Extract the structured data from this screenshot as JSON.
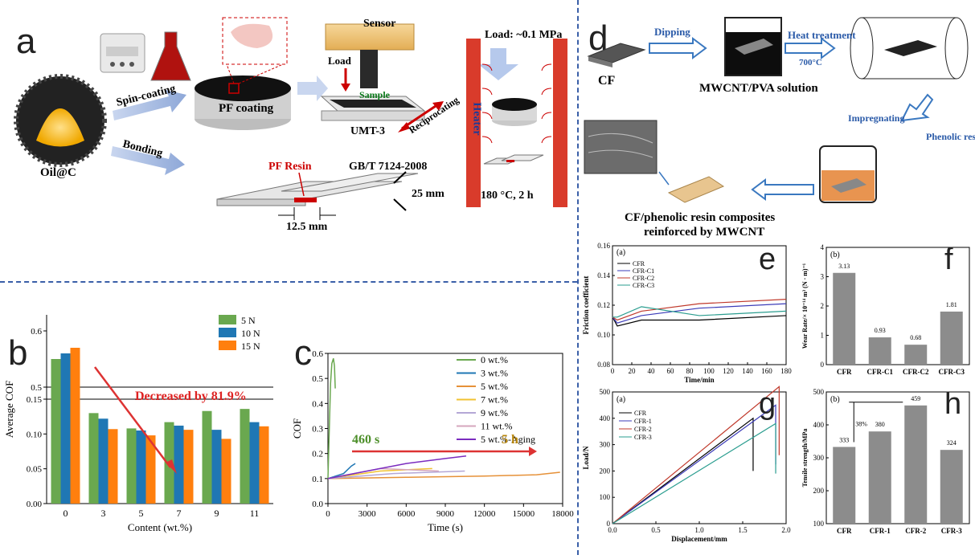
{
  "panel_labels": {
    "a": "a",
    "b": "b",
    "c": "c",
    "d": "d",
    "e": "e",
    "f": "f",
    "g": "g",
    "h": "h"
  },
  "panel_a": {
    "oil_c": "Oil@C",
    "spin_coating": "Spin-coating",
    "bonding": "Bonding",
    "pf_coating": "PF coating",
    "sensor": "Sensor",
    "load": "Load",
    "sample": "Sample",
    "umt": "UMT-3",
    "reciprocating": "Reciprocating",
    "pf_resin": "PF Resin",
    "standard": "GB/T 7124-2008",
    "width": "25 mm",
    "overlap": "12.5 mm",
    "load_top": "Load: ~0.1 MPa",
    "heater": "Heater",
    "condition": "180 °C, 2 h"
  },
  "panel_d": {
    "cf": "CF",
    "dipping": "Dipping",
    "solution": "MWCNT/PVA solution",
    "heat_treatment": "Heat treatment",
    "temp": "700°C",
    "impregnating": "Impregnating",
    "phenolic_resin": "Phenolic resin",
    "caption_line1": "CF/phenolic resin composites",
    "caption_line2": "reinforced by MWCNT"
  },
  "chart_data": [
    {
      "id": "b",
      "type": "bar",
      "ylabel": "Average COF",
      "xlabel": "Content (wt.%)",
      "categories": [
        "0",
        "3",
        "5",
        "7",
        "9",
        "11"
      ],
      "series": [
        {
          "name": "5 N",
          "color": "#6aa84f",
          "values": [
            0.55,
            0.13,
            0.108,
            0.117,
            0.133,
            0.136
          ]
        },
        {
          "name": "10 N",
          "color": "#1f77b4",
          "values": [
            0.56,
            0.122,
            0.105,
            0.112,
            0.106,
            0.117
          ]
        },
        {
          "name": "15 N",
          "color": "#ff7f0e",
          "values": [
            0.57,
            0.107,
            0.098,
            0.106,
            0.093,
            0.111
          ]
        }
      ],
      "yticks": [
        "0.00",
        "0.05",
        "0.10",
        "0.15",
        "0.5",
        "0.6"
      ],
      "annotation": "Decreased by 81.9%"
    },
    {
      "id": "c",
      "type": "line",
      "ylabel": "COF",
      "xlabel": "Time (s)",
      "xticks": [
        "0",
        "3000",
        "6000",
        "9000",
        "12000",
        "15000",
        "18000"
      ],
      "yticks": [
        "0.0",
        "0.1",
        "0.2",
        "0.3",
        "0.4",
        "0.5",
        "0.6"
      ],
      "xlim": [
        0,
        18000
      ],
      "ylim": [
        0,
        0.6
      ],
      "series": [
        {
          "name": "0 wt.%",
          "color": "#6aa84f"
        },
        {
          "name": "3 wt.%",
          "color": "#1f77b4"
        },
        {
          "name": "5 wt.%",
          "color": "#e69138"
        },
        {
          "name": "7 wt.%",
          "color": "#f1c232"
        },
        {
          "name": "9 wt.%",
          "color": "#b4a7d6"
        },
        {
          "name": "11 wt.%",
          "color": "#d5a6bd"
        },
        {
          "name": "5 wt.%-Aging",
          "color": "#7b2cbf"
        }
      ],
      "annotation_left": "460 s",
      "annotation_right": "5 h"
    },
    {
      "id": "e",
      "type": "line",
      "subfig": "(a)",
      "ylabel": "Friction coefficient",
      "xlabel": "Time/min",
      "xticks": [
        "0",
        "20",
        "40",
        "60",
        "80",
        "100",
        "120",
        "140",
        "160",
        "180"
      ],
      "yticks": [
        "0.08",
        "0.10",
        "0.12",
        "0.14",
        "0.16"
      ],
      "xlim": [
        0,
        180
      ],
      "ylim": [
        0.08,
        0.16
      ],
      "series": [
        {
          "name": "CFR",
          "color": "#000000"
        },
        {
          "name": "CFR-C1",
          "color": "#3b3bb8"
        },
        {
          "name": "CFR-C2",
          "color": "#c0392b"
        },
        {
          "name": "CFR-C3",
          "color": "#2a9d8f"
        }
      ]
    },
    {
      "id": "f",
      "type": "bar",
      "subfig": "(b)",
      "ylabel": "Wear Rate/× 10⁻¹⁴ m³ (N · m)⁻¹",
      "categories": [
        "CFR",
        "CFR-C1",
        "CFR-C2",
        "CFR-C3"
      ],
      "values": [
        3.13,
        0.93,
        0.68,
        1.81
      ],
      "value_labels": [
        "3.13",
        "0.93",
        "0.68",
        "1.81"
      ],
      "yticks": [
        "0",
        "1",
        "2",
        "3",
        "4"
      ],
      "ylim": [
        0,
        4
      ]
    },
    {
      "id": "g",
      "type": "line",
      "subfig": "(a)",
      "ylabel": "Load/N",
      "xlabel": "Displacement/mm",
      "xticks": [
        "0.0",
        "0.5",
        "1.0",
        "1.5",
        "2.0"
      ],
      "yticks": [
        "0",
        "100",
        "200",
        "300",
        "400",
        "500"
      ],
      "xlim": [
        0,
        2.0
      ],
      "ylim": [
        0,
        500
      ],
      "series": [
        {
          "name": "CFR",
          "color": "#000000"
        },
        {
          "name": "CFR-1",
          "color": "#3b3bb8"
        },
        {
          "name": "CFR-2",
          "color": "#c0392b"
        },
        {
          "name": "CFR-3",
          "color": "#2a9d8f"
        }
      ]
    },
    {
      "id": "h",
      "type": "bar",
      "subfig": "(b)",
      "ylabel": "Tensile strength/MPa",
      "categories": [
        "CFR",
        "CFR-1",
        "CFR-2",
        "CFR-3"
      ],
      "values": [
        333,
        380,
        459,
        324
      ],
      "value_labels": [
        "333",
        "380",
        "459",
        "324"
      ],
      "yticks": [
        "100",
        "200",
        "300",
        "400",
        "500"
      ],
      "ylim": [
        100,
        500
      ],
      "annotation": "38%"
    }
  ]
}
